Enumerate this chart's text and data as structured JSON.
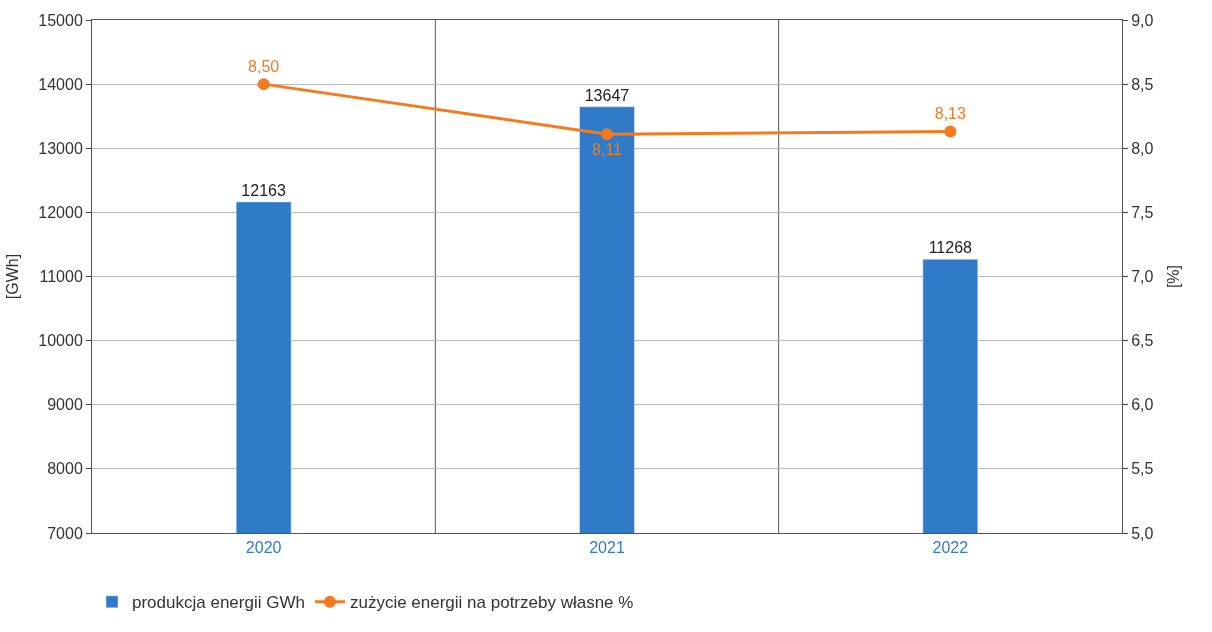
{
  "chart_data": {
    "type": "bar",
    "ylabel": "[GWh]",
    "y2label": "[%]",
    "categories": [
      "2020",
      "2021",
      "2022"
    ],
    "series": [
      {
        "name": "produkcja energii GWh",
        "color": "#2f7bc8",
        "values": [
          12163,
          13647,
          11268
        ],
        "value_labels": [
          "12163",
          "13647",
          "11268"
        ]
      },
      {
        "name": "zużycie energii na potrzeby własne %",
        "type": "line",
        "axis": "y2",
        "color": "#f47a20",
        "marker": "circle",
        "values": [
          8.5,
          8.11,
          8.13
        ],
        "value_labels": [
          "8,50",
          "8,11",
          "8,13"
        ]
      }
    ],
    "ylim": [
      7000,
      15000
    ],
    "yticks": [
      7000,
      8000,
      9000,
      10000,
      11000,
      12000,
      13000,
      14000,
      15000
    ],
    "y2lim": [
      5.0,
      9.0
    ],
    "y2ticks": [
      {
        "value": 5.0,
        "label": "5,0"
      },
      {
        "value": 5.5,
        "label": "5,5"
      },
      {
        "value": 6.0,
        "label": "6,0"
      },
      {
        "value": 6.5,
        "label": "6,5"
      },
      {
        "value": 7.0,
        "label": "7,0"
      },
      {
        "value": 7.5,
        "label": "7,5"
      },
      {
        "value": 8.0,
        "label": "8,0"
      },
      {
        "value": 8.5,
        "label": "8,5"
      },
      {
        "value": 9.0,
        "label": "9,0"
      }
    ],
    "grid": true,
    "legend": "bottom"
  }
}
